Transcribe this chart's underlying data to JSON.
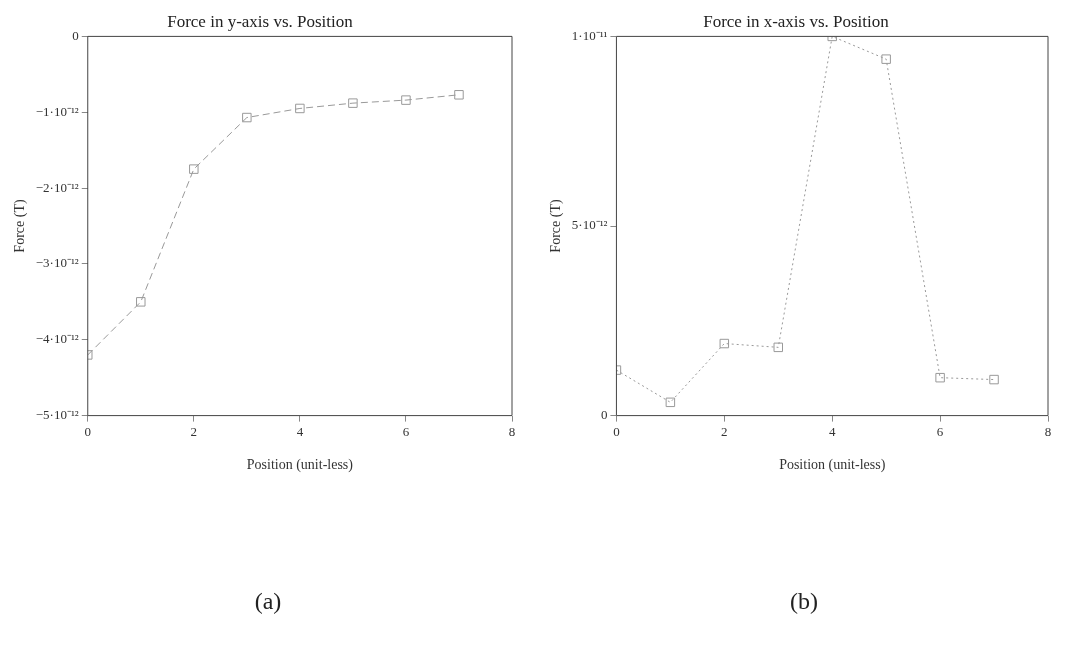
{
  "chart_data": [
    {
      "type": "line",
      "title": "Force in y-axis vs. Position",
      "xlabel": "Position (unit-less)",
      "ylabel": "Force (T)",
      "x": [
        0,
        1,
        2,
        3,
        4,
        5,
        6,
        7
      ],
      "series": [
        {
          "color": "#999999",
          "values": [
            -4.2e-12,
            -3.5e-12,
            -1.75e-12,
            -1.07e-12,
            -9.5e-13,
            -8.8e-13,
            -8.4e-13,
            -7.7e-13
          ]
        }
      ],
      "xlim": [
        0,
        8
      ],
      "xticks": [
        0,
        2,
        4,
        6,
        8
      ],
      "ylim": [
        -5e-12,
        0
      ],
      "yticks": [
        {
          "value": -5e-12,
          "label": "−5·10⁻¹²"
        },
        {
          "value": -4e-12,
          "label": "−4·10⁻¹²"
        },
        {
          "value": -3e-12,
          "label": "−3·10⁻¹²"
        },
        {
          "value": -2e-12,
          "label": "−2·10⁻¹²"
        },
        {
          "value": -1e-12,
          "label": "−1·10⁻¹²"
        },
        0
      ],
      "marker": "square",
      "line_style": "dashed",
      "grid": false,
      "legend": false,
      "annotations": [
        "(a)"
      ]
    },
    {
      "type": "line",
      "title": "Force in x-axis vs. Position",
      "xlabel": "Position (unit-less)",
      "ylabel": "Force (T)",
      "x": [
        0,
        1,
        2,
        3,
        4,
        5,
        6,
        7
      ],
      "series": [
        {
          "color": "#999999",
          "values": [
            1.2e-12,
            3.5e-13,
            1.9e-12,
            1.8e-12,
            1e-11,
            9.4e-12,
            1e-12,
            9.5e-13
          ]
        }
      ],
      "xlim": [
        0,
        8
      ],
      "xticks": [
        0,
        2,
        4,
        6,
        8
      ],
      "ylim": [
        0,
        1e-11
      ],
      "yticks": [
        0,
        {
          "value": 5e-12,
          "label": "5·10⁻¹²"
        },
        {
          "value": 1e-11,
          "label": "1·10⁻¹¹"
        }
      ],
      "marker": "square",
      "line_style": "dotted",
      "grid": false,
      "legend": false,
      "annotations": [
        "(b)"
      ]
    }
  ]
}
